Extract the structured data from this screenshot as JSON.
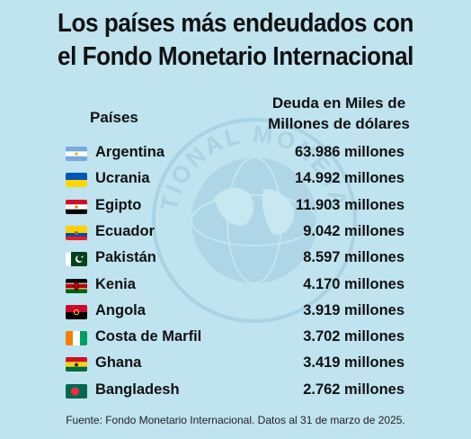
{
  "title_line1": "Los países más endeudados con",
  "title_line2": "el Fondo Monetario Internacional",
  "watermark_text": "INTERNATIONAL MONETARY FUND",
  "colors": {
    "background": "#bfe3ef",
    "text": "#111111"
  },
  "chart_data": {
    "type": "table",
    "columns": [
      "Países",
      "Deuda en Miles de Millones de dólares"
    ],
    "rows": [
      {
        "country": "Argentina",
        "flag": "argentina-flag",
        "value": 63986,
        "label": "63.986 millones"
      },
      {
        "country": "Ucrania",
        "flag": "ukraine-flag",
        "value": 14992,
        "label": "14.992 millones"
      },
      {
        "country": "Egipto",
        "flag": "egypt-flag",
        "value": 11903,
        "label": "11.903 millones"
      },
      {
        "country": "Ecuador",
        "flag": "ecuador-flag",
        "value": 9042,
        "label": "9.042 millones"
      },
      {
        "country": "Pakistán",
        "flag": "pakistan-flag",
        "value": 8597,
        "label": "8.597 millones"
      },
      {
        "country": "Kenia",
        "flag": "kenya-flag",
        "value": 4170,
        "label": "4.170 millones"
      },
      {
        "country": "Angola",
        "flag": "angola-flag",
        "value": 3919,
        "label": "3.919 millones"
      },
      {
        "country": "Costa de Marfil",
        "flag": "ivory-coast-flag",
        "value": 3702,
        "label": "3.702 millones"
      },
      {
        "country": "Ghana",
        "flag": "ghana-flag",
        "value": 3419,
        "label": "3.419 millones"
      },
      {
        "country": "Bangladesh",
        "flag": "bangladesh-flag",
        "value": 2762,
        "label": "2.762 millones"
      }
    ]
  },
  "header": {
    "countries": "Países",
    "debt_line1": "Deuda en Miles de",
    "debt_line2": "Millones de dólares"
  },
  "source": "Fuente: Fondo Monetario Internacional. Datos al 31 de marzo de 2025."
}
